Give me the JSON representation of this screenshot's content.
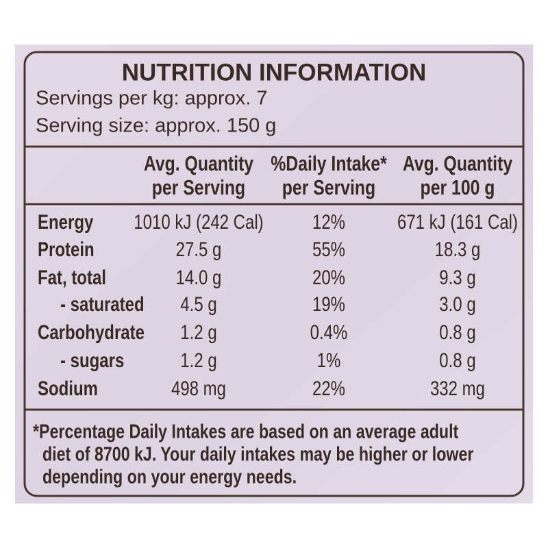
{
  "header": {
    "title": "NUTRITION INFORMATION",
    "servings": "Servings per kg: approx. 7",
    "serving_size": "Serving size: approx. 150 g"
  },
  "table": {
    "columns": [
      [
        "Avg. Quantity",
        "per Serving"
      ],
      [
        "%Daily Intake*",
        "per Serving"
      ],
      [
        "Avg. Quantity",
        "per 100 g"
      ]
    ],
    "rows": [
      [
        "Energy",
        "1010 kJ (242 Cal)",
        "12%",
        "671 kJ (161 Cal)"
      ],
      [
        "Protein",
        "27.5 g",
        "55%",
        "18.3 g"
      ],
      [
        "Fat, total",
        "14.0 g",
        "20%",
        "9.3 g"
      ],
      [
        "- saturated",
        "4.5 g",
        "19%",
        "3.0 g"
      ],
      [
        "Carbohydrate",
        "1.2 g",
        "0.4%",
        "0.8 g"
      ],
      [
        "- sugars",
        "1.2 g",
        "1%",
        "0.8 g"
      ],
      [
        "Sodium",
        "498 mg",
        "22%",
        "332 mg"
      ]
    ]
  },
  "footnote": [
    "*Percentage Daily Intakes are based on an average adult",
    "diet of 8700 kJ. Your daily intakes may be higher or lower",
    "depending on your energy needs."
  ]
}
